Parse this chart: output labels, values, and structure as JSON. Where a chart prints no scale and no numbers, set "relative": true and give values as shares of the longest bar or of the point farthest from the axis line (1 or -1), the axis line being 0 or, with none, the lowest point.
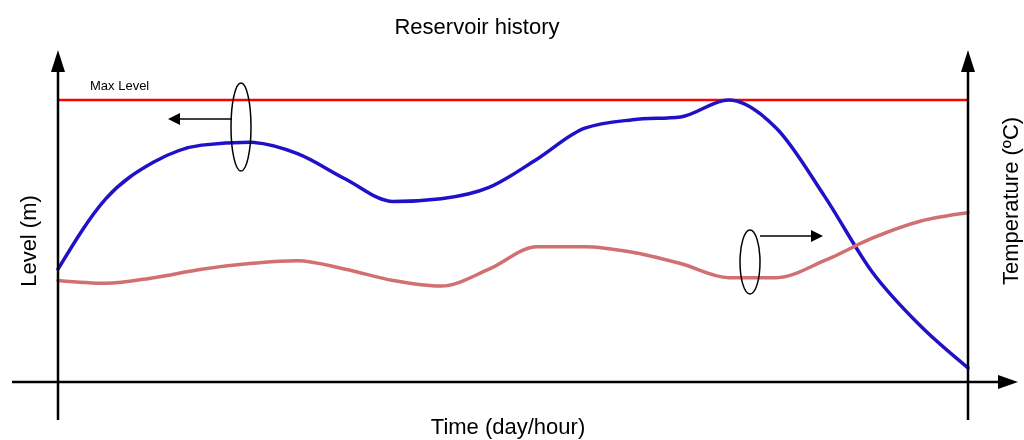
{
  "chart_data": {
    "type": "line",
    "title": "Reservoir history",
    "xlabel": "Time (day/hour)",
    "ylabel": "Level (m)",
    "y2label": "Temperature (ºC)",
    "relative": true,
    "categories": [
      null,
      null,
      null,
      null,
      null,
      null,
      null,
      null,
      null,
      null,
      null,
      null,
      null,
      null,
      null,
      null,
      null,
      null,
      null,
      null
    ],
    "series": [
      {
        "color": "#2010c8",
        "values": [
          0.4,
          0.65,
          0.78,
          0.84,
          0.85,
          0.81,
          0.72,
          0.64,
          0.65,
          0.69,
          0.79,
          0.9,
          0.93,
          0.94,
          1.0,
          0.9,
          0.66,
          0.39,
          0.2,
          0.05
        ]
      },
      {
        "color": "#d07070",
        "values": [
          0.36,
          0.35,
          0.37,
          0.4,
          0.42,
          0.43,
          0.4,
          0.36,
          0.34,
          0.4,
          0.48,
          0.48,
          0.46,
          0.42,
          0.37,
          0.37,
          0.43,
          0.51,
          0.57,
          0.6
        ]
      }
    ],
    "ref_lines": [
      {
        "axis": "y",
        "value": 1,
        "label": "Max Level",
        "color": "#ff0000"
      }
    ]
  }
}
